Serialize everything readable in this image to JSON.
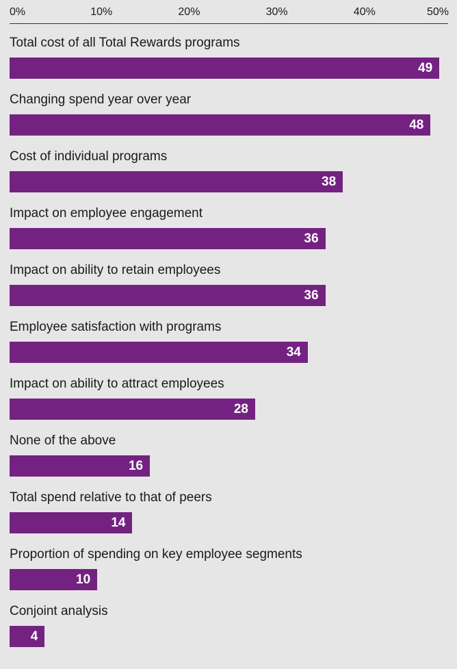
{
  "chart_data": {
    "type": "bar",
    "orientation": "horizontal",
    "title": "",
    "xlabel": "",
    "ylabel": "",
    "xlim": [
      0,
      50
    ],
    "x_tick_labels": [
      "0%",
      "10%",
      "20%",
      "30%",
      "40%",
      "50%"
    ],
    "x_ticks": [
      0,
      10,
      20,
      30,
      40,
      50
    ],
    "grid": false,
    "axis_position": "top",
    "bar_color": "#742282",
    "value_label_color": "#ffffff",
    "background_color": "#e6e6e6",
    "categories": [
      "Total cost of all Total Rewards programs",
      "Changing spend year over year",
      "Cost of individual programs",
      "Impact on employee engagement",
      "Impact on ability to retain employees",
      "Employee satisfaction with programs",
      "Impact on ability to attract employees",
      "None of the above",
      "Total spend relative to that of peers",
      "Proportion of spending on key employee segments",
      "Conjoint analysis"
    ],
    "values": [
      49,
      48,
      38,
      36,
      36,
      34,
      28,
      16,
      14,
      10,
      4
    ]
  }
}
